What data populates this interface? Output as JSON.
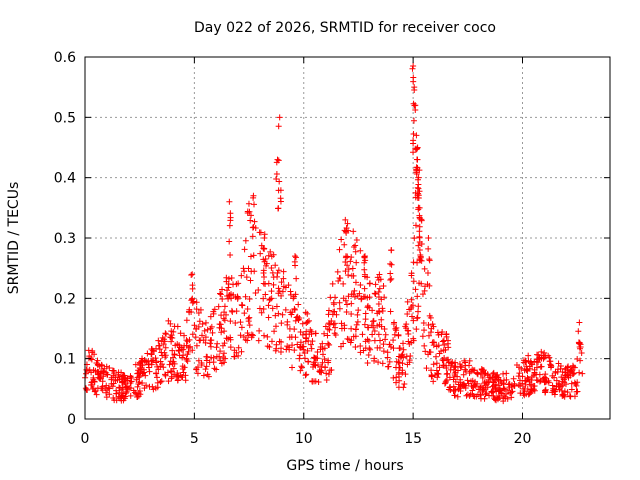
{
  "chart_data": {
    "type": "scatter",
    "title": "Day 022 of 2026, SRMTID for receiver coco",
    "xlabel": "GPS time / hours",
    "ylabel": "SRMTID / TECUs",
    "xlim": [
      0,
      24
    ],
    "ylim": [
      0,
      0.6
    ],
    "x_ticks": [
      0,
      5,
      10,
      15,
      20
    ],
    "y_ticks": [
      0,
      0.1,
      0.2,
      0.3,
      0.4,
      0.5,
      0.6
    ],
    "x_tick_labels": [
      "0",
      "5",
      "10",
      "15",
      "20"
    ],
    "y_tick_labels": [
      "0",
      "0.1",
      "0.2",
      "0.3",
      "0.4",
      "0.5",
      "0.6"
    ],
    "grid": true,
    "marker": "plus",
    "color": "#ff0000",
    "series": [
      {
        "name": "SRMTID",
        "profile_x": [
          0,
          0.2,
          0.5,
          1.0,
          1.5,
          2.0,
          2.5,
          3.0,
          3.5,
          4.0,
          4.5,
          5.0,
          5.5,
          6.0,
          6.5,
          7.0,
          7.5,
          8.0,
          8.5,
          9.0,
          9.5,
          10.0,
          10.5,
          11.0,
          11.5,
          12.0,
          12.5,
          13.0,
          13.5,
          14.0,
          14.5,
          15.0,
          15.3,
          15.6,
          16.0,
          16.5,
          17.0,
          17.5,
          18.0,
          18.5,
          19.0,
          19.5,
          20.0,
          20.5,
          21.0,
          21.5,
          22.0,
          22.5,
          22.75
        ],
        "profile_y": [
          0.07,
          0.1,
          0.07,
          0.06,
          0.055,
          0.05,
          0.07,
          0.08,
          0.1,
          0.12,
          0.1,
          0.15,
          0.11,
          0.13,
          0.17,
          0.16,
          0.25,
          0.22,
          0.2,
          0.18,
          0.15,
          0.13,
          0.1,
          0.11,
          0.18,
          0.24,
          0.2,
          0.16,
          0.17,
          0.13,
          0.08,
          0.2,
          0.3,
          0.15,
          0.1,
          0.1,
          0.06,
          0.07,
          0.06,
          0.055,
          0.05,
          0.06,
          0.07,
          0.075,
          0.08,
          0.065,
          0.06,
          0.07,
          0.11
        ],
        "n_points": 1400,
        "spikes": [
          {
            "x": 4.9,
            "y": 0.24
          },
          {
            "x": 6.6,
            "y": 0.36
          },
          {
            "x": 7.7,
            "y": 0.37
          },
          {
            "x": 8.2,
            "y": 0.3
          },
          {
            "x": 8.9,
            "y": 0.5
          },
          {
            "x": 8.8,
            "y": 0.43
          },
          {
            "x": 9.6,
            "y": 0.27
          },
          {
            "x": 11.9,
            "y": 0.33
          },
          {
            "x": 12.8,
            "y": 0.27
          },
          {
            "x": 14.0,
            "y": 0.28
          },
          {
            "x": 15.0,
            "y": 0.585
          },
          {
            "x": 15.05,
            "y": 0.55
          },
          {
            "x": 15.1,
            "y": 0.52
          },
          {
            "x": 15.15,
            "y": 0.47
          },
          {
            "x": 15.2,
            "y": 0.43
          },
          {
            "x": 15.25,
            "y": 0.4
          },
          {
            "x": 15.3,
            "y": 0.35
          },
          {
            "x": 15.7,
            "y": 0.3
          },
          {
            "x": 22.6,
            "y": 0.16
          }
        ]
      }
    ]
  }
}
